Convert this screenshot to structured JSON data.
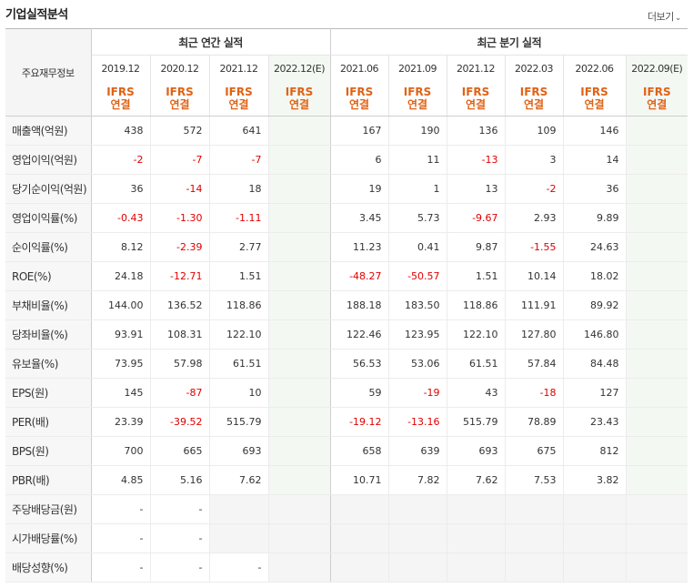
{
  "title": "기업실적분석",
  "more": {
    "label": "더보기",
    "icon": "chevron-down-icon"
  },
  "header": {
    "label_col": "주요재무정보",
    "annual_group": "최근 연간 실적",
    "quarterly_group": "최근 분기 실적",
    "annual_periods": [
      "2019.12",
      "2020.12",
      "2021.12",
      "2022.12(E)"
    ],
    "quarterly_periods": [
      "2021.06",
      "2021.09",
      "2021.12",
      "2022.03",
      "2022.06",
      "2022.09(E)"
    ],
    "accounting_line1": "IFRS",
    "accounting_line2": "연결"
  },
  "colors": {
    "accent": "#e06215",
    "negative": "#e00000",
    "estimate_bg": "#f3f8f3"
  },
  "rows": [
    {
      "label": "매출액(억원)",
      "annual": [
        "438",
        "572",
        "641",
        ""
      ],
      "quarterly": [
        "167",
        "190",
        "136",
        "109",
        "146",
        ""
      ]
    },
    {
      "label": "영업이익(억원)",
      "annual": [
        "-2",
        "-7",
        "-7",
        ""
      ],
      "quarterly": [
        "6",
        "11",
        "-13",
        "3",
        "14",
        ""
      ]
    },
    {
      "label": "당기순이익(억원)",
      "annual": [
        "36",
        "-14",
        "18",
        ""
      ],
      "quarterly": [
        "19",
        "1",
        "13",
        "-2",
        "36",
        ""
      ]
    },
    {
      "label": "영업이익률(%)",
      "annual": [
        "-0.43",
        "-1.30",
        "-1.11",
        ""
      ],
      "quarterly": [
        "3.45",
        "5.73",
        "-9.67",
        "2.93",
        "9.89",
        ""
      ]
    },
    {
      "label": "순이익률(%)",
      "annual": [
        "8.12",
        "-2.39",
        "2.77",
        ""
      ],
      "quarterly": [
        "11.23",
        "0.41",
        "9.87",
        "-1.55",
        "24.63",
        ""
      ]
    },
    {
      "label": "ROE(%)",
      "annual": [
        "24.18",
        "-12.71",
        "1.51",
        ""
      ],
      "quarterly": [
        "-48.27",
        "-50.57",
        "1.51",
        "10.14",
        "18.02",
        ""
      ]
    },
    {
      "label": "부채비율(%)",
      "annual": [
        "144.00",
        "136.52",
        "118.86",
        ""
      ],
      "quarterly": [
        "188.18",
        "183.50",
        "118.86",
        "111.91",
        "89.92",
        ""
      ]
    },
    {
      "label": "당좌비율(%)",
      "annual": [
        "93.91",
        "108.31",
        "122.10",
        ""
      ],
      "quarterly": [
        "122.46",
        "123.95",
        "122.10",
        "127.80",
        "146.80",
        ""
      ]
    },
    {
      "label": "유보율(%)",
      "annual": [
        "73.95",
        "57.98",
        "61.51",
        ""
      ],
      "quarterly": [
        "56.53",
        "53.06",
        "61.51",
        "57.84",
        "84.48",
        ""
      ]
    },
    {
      "label": "EPS(원)",
      "annual": [
        "145",
        "-87",
        "10",
        ""
      ],
      "quarterly": [
        "59",
        "-19",
        "43",
        "-18",
        "127",
        ""
      ]
    },
    {
      "label": "PER(배)",
      "annual": [
        "23.39",
        "-39.52",
        "515.79",
        ""
      ],
      "quarterly": [
        "-19.12",
        "-13.16",
        "515.79",
        "78.89",
        "23.43",
        ""
      ]
    },
    {
      "label": "BPS(원)",
      "annual": [
        "700",
        "665",
        "693",
        ""
      ],
      "quarterly": [
        "658",
        "639",
        "693",
        "675",
        "812",
        ""
      ]
    },
    {
      "label": "PBR(배)",
      "annual": [
        "4.85",
        "5.16",
        "7.62",
        ""
      ],
      "quarterly": [
        "10.71",
        "7.82",
        "7.62",
        "7.53",
        "3.82",
        ""
      ]
    },
    {
      "label": "주당배당금(원)",
      "annual": [
        "-",
        "-",
        null,
        null
      ],
      "quarterly": [
        null,
        null,
        null,
        null,
        null,
        null
      ]
    },
    {
      "label": "시가배당률(%)",
      "annual": [
        "-",
        "-",
        null,
        null
      ],
      "quarterly": [
        null,
        null,
        null,
        null,
        null,
        null
      ]
    },
    {
      "label": "배당성향(%)",
      "annual": [
        "-",
        "-",
        "-",
        null
      ],
      "quarterly": [
        null,
        null,
        null,
        null,
        null,
        null
      ]
    }
  ]
}
